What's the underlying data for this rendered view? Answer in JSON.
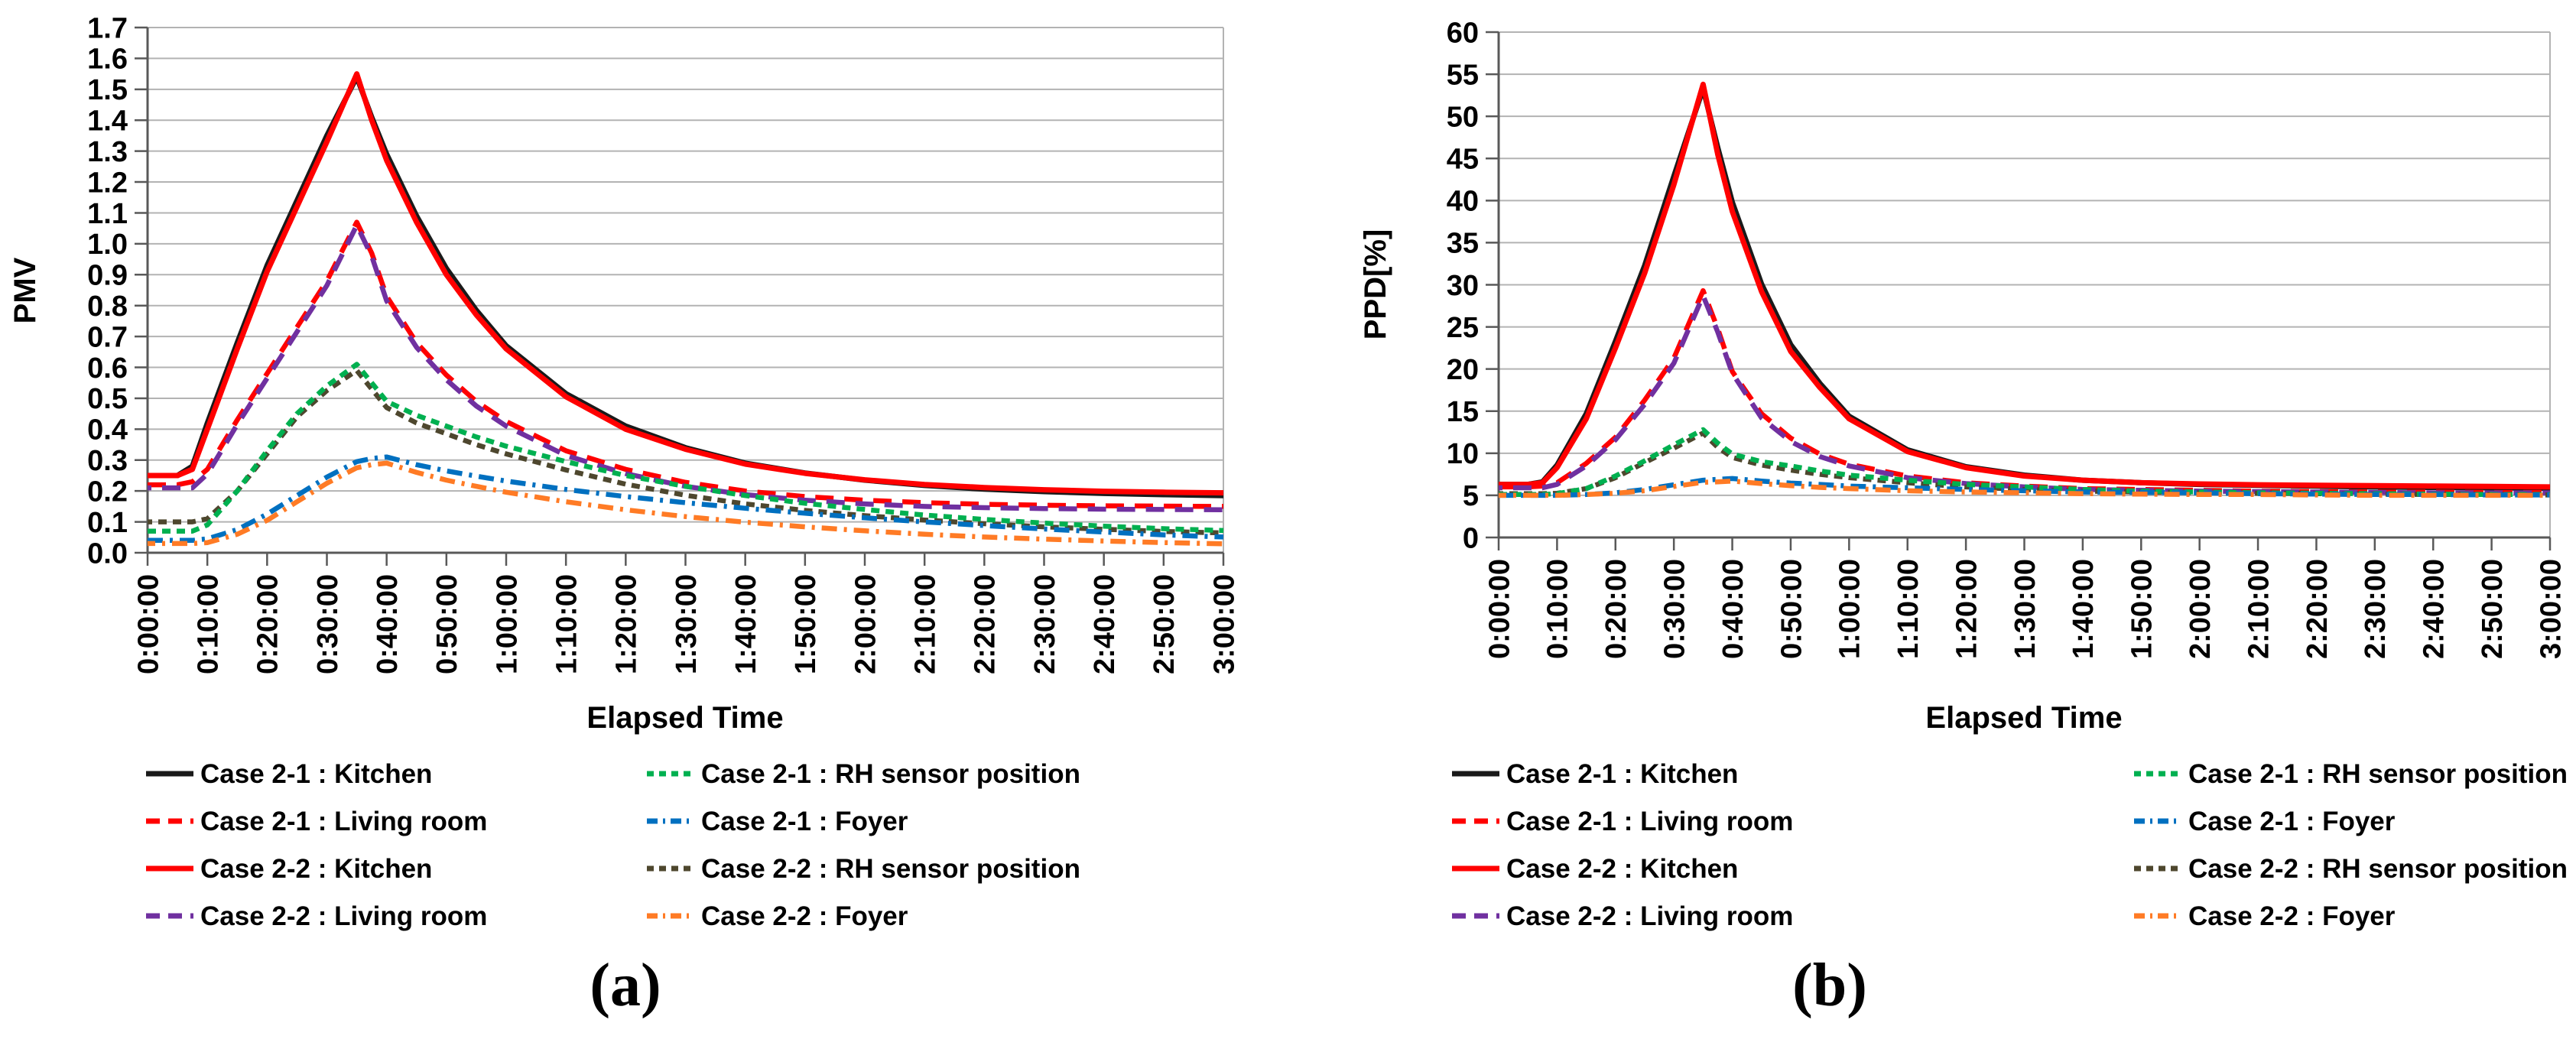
{
  "figure": {
    "caption_a": "(a)",
    "caption_b": "(b)"
  },
  "colors": {
    "black": "#1A1A1A",
    "red": "#FF0000",
    "purple": "#7030A0",
    "green": "#00B050",
    "olive": "#4E472E",
    "blue": "#0070C0",
    "orange": "#FF7B25",
    "grid": "#B3B3B3",
    "axis": "#595959"
  },
  "chart_data": [
    {
      "type": "line",
      "title": "",
      "ylabel": "PMV",
      "xlabel": "Elapsed Time",
      "caption": "(a)",
      "ylim": [
        0,
        1.7
      ],
      "ytick_step": 0.1,
      "ytick_labels": [
        "0.0",
        "0.1",
        "0.2",
        "0.3",
        "0.4",
        "0.5",
        "0.6",
        "0.7",
        "0.8",
        "0.9",
        "1.0",
        "1.1",
        "1.2",
        "1.3",
        "1.4",
        "1.5",
        "1.6",
        "1.7"
      ],
      "xlim_minutes": [
        0,
        180
      ],
      "xtick_labels": [
        "0:00:00",
        "0:10:00",
        "0:20:00",
        "0:30:00",
        "0:40:00",
        "0:50:00",
        "1:00:00",
        "1:10:00",
        "1:20:00",
        "1:30:00",
        "1:40:00",
        "1:50:00",
        "2:00:00",
        "2:10:00",
        "2:20:00",
        "2:30:00",
        "2:40:00",
        "2:50:00",
        "3:00:00"
      ],
      "grid": true,
      "legend_position": "bottom-two-columns",
      "legend_columns": [
        [
          "case21_kitchen",
          "case21_living",
          "case22_kitchen",
          "case22_living"
        ],
        [
          "case21_rh",
          "case21_foyer",
          "case22_rh",
          "case22_foyer"
        ]
      ],
      "x_minutes": [
        0,
        5,
        7.5,
        10,
        15,
        20,
        25,
        30,
        35,
        37.5,
        40,
        45,
        50,
        55,
        60,
        70,
        80,
        90,
        100,
        110,
        120,
        130,
        140,
        150,
        160,
        170,
        180
      ],
      "series": [
        {
          "key": "case21_kitchen",
          "name": "Case 2-1 : Kitchen",
          "color": "black",
          "style": "solid",
          "values": [
            0.25,
            0.25,
            0.28,
            0.42,
            0.68,
            0.93,
            1.14,
            1.35,
            1.54,
            1.41,
            1.29,
            1.09,
            0.92,
            0.785,
            0.67,
            0.515,
            0.41,
            0.34,
            0.29,
            0.258,
            0.235,
            0.218,
            0.206,
            0.198,
            0.192,
            0.188,
            0.185
          ]
        },
        {
          "key": "case22_kitchen",
          "name": "Case 2-2 : Kitchen",
          "color": "red",
          "style": "solid",
          "values": [
            0.25,
            0.25,
            0.27,
            0.4,
            0.66,
            0.91,
            1.12,
            1.33,
            1.55,
            1.4,
            1.27,
            1.07,
            0.9,
            0.77,
            0.66,
            0.505,
            0.4,
            0.335,
            0.287,
            0.257,
            0.236,
            0.221,
            0.211,
            0.204,
            0.199,
            0.196,
            0.194
          ]
        },
        {
          "key": "case21_living",
          "name": "Case 2-1 : Living room",
          "color": "red",
          "style": "dash",
          "values": [
            0.22,
            0.22,
            0.23,
            0.27,
            0.43,
            0.58,
            0.73,
            0.88,
            1.07,
            0.97,
            0.83,
            0.68,
            0.575,
            0.49,
            0.425,
            0.33,
            0.27,
            0.228,
            0.2,
            0.182,
            0.17,
            0.162,
            0.157,
            0.154,
            0.152,
            0.151,
            0.15
          ]
        },
        {
          "key": "case22_living",
          "name": "Case 2-2 : Living room",
          "color": "purple",
          "style": "dash",
          "values": [
            0.21,
            0.21,
            0.21,
            0.255,
            0.415,
            0.565,
            0.715,
            0.865,
            1.06,
            0.96,
            0.815,
            0.665,
            0.56,
            0.475,
            0.41,
            0.315,
            0.256,
            0.215,
            0.188,
            0.17,
            0.158,
            0.15,
            0.146,
            0.143,
            0.141,
            0.14,
            0.139
          ]
        },
        {
          "key": "case22_rh",
          "name": "Case 2-2 : RH sensor position",
          "color": "olive",
          "style": "shortdash",
          "values": [
            0.1,
            0.1,
            0.1,
            0.11,
            0.2,
            0.32,
            0.44,
            0.525,
            0.59,
            0.53,
            0.47,
            0.42,
            0.385,
            0.35,
            0.32,
            0.268,
            0.222,
            0.186,
            0.158,
            0.137,
            0.12,
            0.106,
            0.094,
            0.084,
            0.076,
            0.069,
            0.064
          ]
        },
        {
          "key": "case21_rh",
          "name": "Case 2-1 : RH sensor position",
          "color": "green",
          "style": "shortdash",
          "values": [
            0.07,
            0.07,
            0.07,
            0.09,
            0.2,
            0.33,
            0.45,
            0.54,
            0.61,
            0.55,
            0.49,
            0.445,
            0.41,
            0.375,
            0.345,
            0.295,
            0.25,
            0.215,
            0.185,
            0.16,
            0.14,
            0.122,
            0.108,
            0.096,
            0.086,
            0.078,
            0.072
          ]
        },
        {
          "key": "case21_foyer",
          "name": "Case 2-1 : Foyer",
          "color": "blue",
          "style": "dashdot",
          "values": [
            0.04,
            0.04,
            0.04,
            0.045,
            0.075,
            0.125,
            0.185,
            0.245,
            0.295,
            0.305,
            0.31,
            0.285,
            0.265,
            0.248,
            0.232,
            0.205,
            0.182,
            0.162,
            0.144,
            0.128,
            0.113,
            0.1,
            0.088,
            0.077,
            0.067,
            0.058,
            0.051
          ]
        },
        {
          "key": "case22_foyer",
          "name": "Case 2-2 : Foyer",
          "color": "orange",
          "style": "dashdot",
          "values": [
            0.03,
            0.03,
            0.03,
            0.033,
            0.06,
            0.105,
            0.165,
            0.225,
            0.275,
            0.285,
            0.29,
            0.26,
            0.235,
            0.215,
            0.196,
            0.165,
            0.139,
            0.117,
            0.099,
            0.084,
            0.071,
            0.06,
            0.051,
            0.044,
            0.038,
            0.033,
            0.029
          ]
        }
      ]
    },
    {
      "type": "line",
      "title": "",
      "ylabel": "PPD[%]",
      "xlabel": "Elapsed Time",
      "caption": "(b)",
      "ylim": [
        0,
        60
      ],
      "ytick_step": 5,
      "ytick_labels": [
        "0",
        "5",
        "10",
        "15",
        "20",
        "25",
        "30",
        "35",
        "40",
        "45",
        "50",
        "55",
        "60"
      ],
      "xlim_minutes": [
        0,
        180
      ],
      "xtick_labels": [
        "0:00:00",
        "0:10:00",
        "0:20:00",
        "0:30:00",
        "0:40:00",
        "0:50:00",
        "1:00:00",
        "1:10:00",
        "1:20:00",
        "1:30:00",
        "1:40:00",
        "1:50:00",
        "2:00:00",
        "2:10:00",
        "2:20:00",
        "2:30:00",
        "2:40:00",
        "2:50:00",
        "3:00:00"
      ],
      "grid": true,
      "legend_position": "bottom-two-columns",
      "legend_columns": [
        [
          "case21_kitchen",
          "case21_living",
          "case22_kitchen",
          "case22_living"
        ],
        [
          "case21_rh",
          "case21_foyer",
          "case22_rh",
          "case22_foyer"
        ]
      ],
      "x_minutes": [
        0,
        5,
        7.5,
        10,
        15,
        20,
        25,
        30,
        35,
        37.5,
        40,
        45,
        50,
        55,
        60,
        70,
        80,
        90,
        100,
        110,
        120,
        130,
        140,
        150,
        160,
        170,
        180
      ],
      "series": [
        {
          "key": "case21_kitchen",
          "name": "Case 2-1 : Kitchen",
          "color": "black",
          "style": "solid",
          "values": [
            6.3,
            6.3,
            6.6,
            8.6,
            14.7,
            23.3,
            32.3,
            42.9,
            53.3,
            46.3,
            39.8,
            30.1,
            22.9,
            18.3,
            14.4,
            10.4,
            8.4,
            7.4,
            6.8,
            6.5,
            6.3,
            6.2,
            6.1,
            6.0,
            5.95,
            5.9,
            5.85
          ]
        },
        {
          "key": "case22_kitchen",
          "name": "Case 2-2 : Kitchen",
          "color": "red",
          "style": "solid",
          "values": [
            6.3,
            6.3,
            6.5,
            8.3,
            14.1,
            22.5,
            31.4,
            41.9,
            53.8,
            45.5,
            38.7,
            29.2,
            22.1,
            17.8,
            14.1,
            10.2,
            8.3,
            7.3,
            6.8,
            6.5,
            6.35,
            6.25,
            6.2,
            6.15,
            6.1,
            6.05,
            6.0
          ]
        },
        {
          "key": "case21_living",
          "name": "Case 2-1 : Living room",
          "color": "red",
          "style": "dash",
          "values": [
            6.0,
            6.0,
            6.1,
            6.5,
            8.8,
            11.9,
            16.3,
            21.3,
            29.3,
            24.8,
            19.7,
            14.7,
            11.8,
            9.9,
            8.7,
            7.3,
            6.5,
            6.1,
            5.8,
            5.7,
            5.6,
            5.5,
            5.45,
            5.4,
            5.4,
            5.35,
            5.35
          ]
        },
        {
          "key": "case22_living",
          "name": "Case 2-2 : Living room",
          "color": "purple",
          "style": "dash",
          "values": [
            5.9,
            5.9,
            5.9,
            6.3,
            8.5,
            11.6,
            15.8,
            20.7,
            28.7,
            24.4,
            19.5,
            14.2,
            11.4,
            9.6,
            8.5,
            7.1,
            6.4,
            6.0,
            5.7,
            5.6,
            5.5,
            5.45,
            5.4,
            5.35,
            5.3,
            5.3,
            5.3
          ]
        },
        {
          "key": "case22_rh",
          "name": "Case 2-2 : RH sensor position",
          "color": "olive",
          "style": "shortdash",
          "values": [
            5.2,
            5.2,
            5.2,
            5.25,
            5.8,
            7.1,
            8.9,
            10.6,
            12.4,
            10.7,
            9.5,
            8.6,
            8.0,
            7.5,
            7.1,
            6.5,
            6.0,
            5.7,
            5.5,
            5.4,
            5.3,
            5.25,
            5.2,
            5.15,
            5.1,
            5.1,
            5.05
          ]
        },
        {
          "key": "case21_rh",
          "name": "Case 2-1 : RH sensor position",
          "color": "green",
          "style": "shortdash",
          "values": [
            5.1,
            5.1,
            5.1,
            5.2,
            5.8,
            7.3,
            9.1,
            11.0,
            12.8,
            11.2,
            9.9,
            9.0,
            8.5,
            7.9,
            7.4,
            6.8,
            6.3,
            6.0,
            5.7,
            5.5,
            5.4,
            5.3,
            5.25,
            5.2,
            5.15,
            5.1,
            5.1
          ]
        },
        {
          "key": "case21_foyer",
          "name": "Case 2-1 : Foyer",
          "color": "blue",
          "style": "dashdot",
          "values": [
            5.0,
            5.0,
            5.0,
            5.0,
            5.1,
            5.3,
            5.7,
            6.25,
            6.8,
            6.9,
            7.0,
            6.7,
            6.45,
            6.3,
            6.1,
            5.9,
            5.7,
            5.55,
            5.4,
            5.35,
            5.3,
            5.2,
            5.15,
            5.1,
            5.1,
            5.05,
            5.05
          ]
        },
        {
          "key": "case22_foyer",
          "name": "Case 2-2 : Foyer",
          "color": "orange",
          "style": "dashdot",
          "values": [
            5.0,
            5.0,
            5.0,
            5.0,
            5.1,
            5.25,
            5.55,
            6.05,
            6.55,
            6.6,
            6.7,
            6.4,
            6.15,
            5.95,
            5.8,
            5.55,
            5.4,
            5.3,
            5.2,
            5.15,
            5.1,
            5.1,
            5.05,
            5.0,
            5.0,
            5.0,
            5.0
          ]
        }
      ]
    }
  ]
}
